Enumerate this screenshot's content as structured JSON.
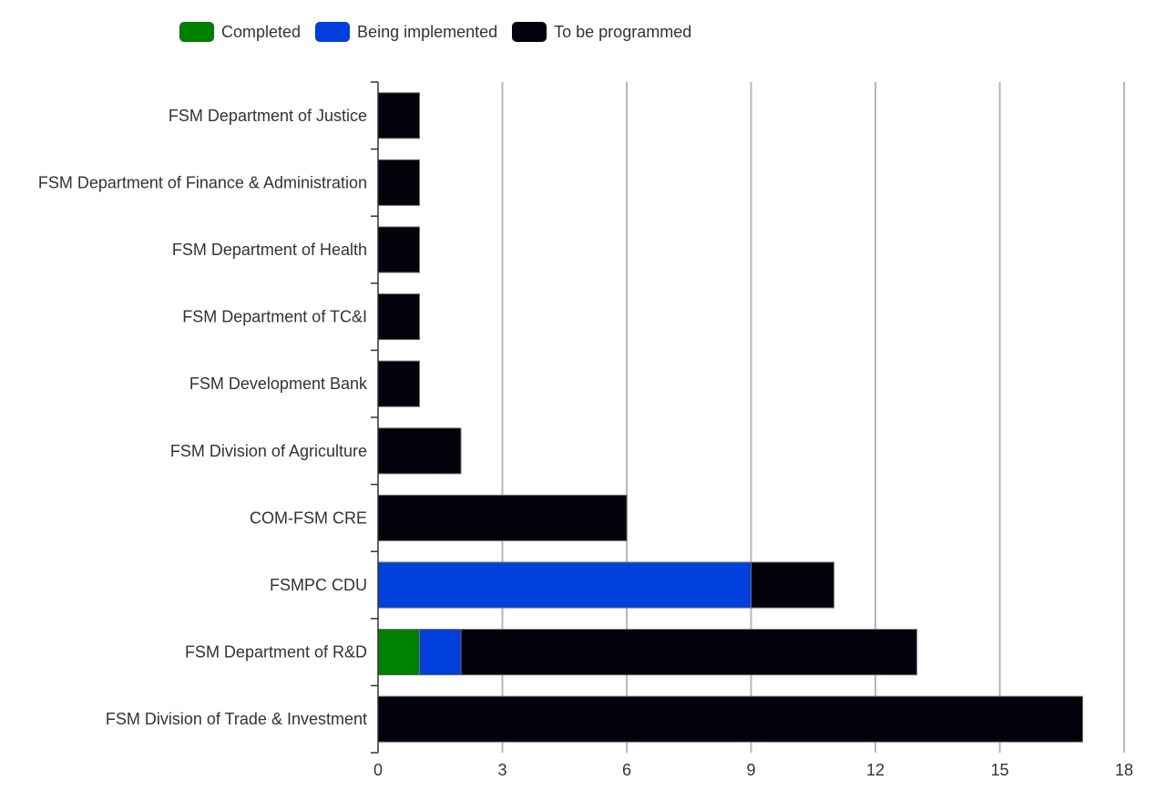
{
  "chart_data": {
    "type": "bar",
    "orientation": "horizontal",
    "stacked": true,
    "title": "",
    "xlabel": "",
    "ylabel": "",
    "xlim": [
      0,
      18
    ],
    "x_ticks": [
      "0",
      "3",
      "6",
      "9",
      "12",
      "15",
      "18"
    ],
    "x_tick_values": [
      0,
      3,
      6,
      9,
      12,
      15,
      18
    ],
    "grid": "vertical",
    "legend_position": "top-left",
    "categories": [
      "FSM Department of Justice",
      "FSM Department of Finance & Administration",
      "FSM Department of Health",
      "FSM Department of TC&I",
      "FSM Development Bank",
      "FSM Division of Agriculture",
      "COM-FSM CRE",
      "FSMPC CDU",
      "FSM Department of R&D",
      "FSM Division of Trade & Investment"
    ],
    "series": [
      {
        "name": "Completed",
        "color": "#008000",
        "values": [
          0,
          0,
          0,
          0,
          0,
          0,
          0,
          0,
          1,
          0
        ]
      },
      {
        "name": "Being implemented",
        "color": "#003fdb",
        "values": [
          0,
          0,
          0,
          0,
          0,
          0,
          0,
          9,
          1,
          0
        ]
      },
      {
        "name": "To be programmed",
        "color": "#02020a",
        "values": [
          1,
          1,
          1,
          1,
          1,
          2,
          6,
          2,
          11,
          17
        ]
      }
    ]
  },
  "legend": [
    {
      "label": "Completed",
      "color": "#008000"
    },
    {
      "label": "Being implemented",
      "color": "#003fdb"
    },
    {
      "label": "To be programmed",
      "color": "#02020a"
    }
  ],
  "colors": {
    "grid": "#b3b6c4",
    "axis": "#333333",
    "bar_stroke": "#6e7079"
  }
}
